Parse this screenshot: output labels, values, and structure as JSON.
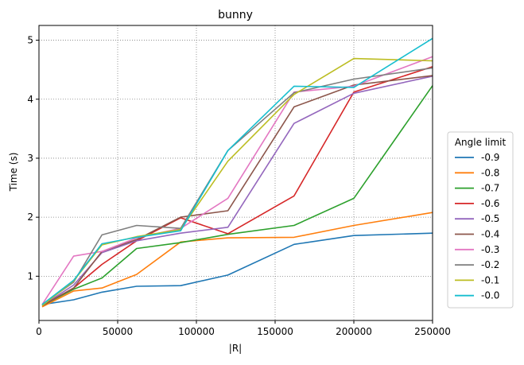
{
  "chart_data": {
    "type": "line",
    "title": "bunny",
    "xlabel": "|R|",
    "ylabel": "Time (s)",
    "xlim": [
      0,
      250000
    ],
    "ylim": [
      0.25,
      5.25
    ],
    "grid": true,
    "grid_style": "dotted",
    "legend": {
      "title": "Angle limit",
      "placement": "outside-right"
    },
    "x_ticks": [
      {
        "value": 0,
        "label": "0"
      },
      {
        "value": 50000,
        "label": "50000"
      },
      {
        "value": 100000,
        "label": "100000"
      },
      {
        "value": 150000,
        "label": "150000"
      },
      {
        "value": 200000,
        "label": "200000"
      },
      {
        "value": 250000,
        "label": "250000"
      }
    ],
    "y_ticks": [
      {
        "value": 1,
        "label": "1"
      },
      {
        "value": 2,
        "label": "2"
      },
      {
        "value": 3,
        "label": "3"
      },
      {
        "value": 4,
        "label": "4"
      },
      {
        "value": 5,
        "label": "5"
      }
    ],
    "x": [
      2000,
      22000,
      40000,
      62000,
      90000,
      120000,
      162000,
      200000,
      250000
    ],
    "series": [
      {
        "name": "-0.9",
        "color": "#1f77b4",
        "values": [
          0.52,
          0.6,
          0.73,
          0.83,
          0.84,
          1.02,
          1.54,
          1.69,
          1.73
        ]
      },
      {
        "name": "-0.8",
        "color": "#ff7f0e",
        "values": [
          0.48,
          0.75,
          0.8,
          1.03,
          1.58,
          1.65,
          1.66,
          1.86,
          2.08
        ]
      },
      {
        "name": "-0.7",
        "color": "#2ca02c",
        "values": [
          0.5,
          0.78,
          0.97,
          1.47,
          1.57,
          1.71,
          1.86,
          2.32,
          4.23
        ]
      },
      {
        "name": "-0.6",
        "color": "#d62728",
        "values": [
          0.5,
          0.8,
          1.2,
          1.6,
          1.99,
          1.72,
          2.36,
          4.12,
          4.55
        ]
      },
      {
        "name": "-0.5",
        "color": "#9467bd",
        "values": [
          0.5,
          0.85,
          1.4,
          1.6,
          1.73,
          1.83,
          3.59,
          4.1,
          4.39
        ]
      },
      {
        "name": "-0.4",
        "color": "#8c564b",
        "values": [
          0.5,
          0.8,
          1.42,
          1.62,
          2.0,
          2.11,
          3.87,
          4.24,
          4.4
        ]
      },
      {
        "name": "-0.3",
        "color": "#e377c2",
        "values": [
          0.52,
          1.34,
          1.42,
          1.65,
          1.81,
          2.32,
          4.12,
          4.22,
          4.72
        ]
      },
      {
        "name": "-0.2",
        "color": "#7f7f7f",
        "values": [
          0.52,
          0.9,
          1.7,
          1.86,
          1.81,
          3.13,
          4.11,
          4.34,
          4.53
        ]
      },
      {
        "name": "-0.1",
        "color": "#bcbd22",
        "values": [
          0.5,
          0.92,
          1.53,
          1.67,
          1.79,
          2.95,
          4.08,
          4.69,
          4.65
        ]
      },
      {
        "name": "-0.0",
        "color": "#17becf",
        "values": [
          0.52,
          0.93,
          1.55,
          1.66,
          1.77,
          3.13,
          4.22,
          4.2,
          5.03
        ]
      }
    ]
  }
}
